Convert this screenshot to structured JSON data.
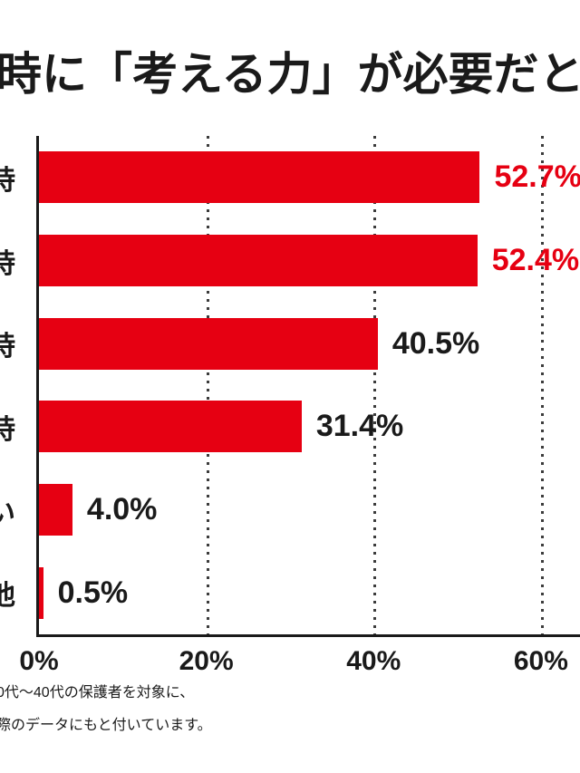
{
  "title": "時に「考える力」が必要だと",
  "chart_data": {
    "type": "bar",
    "orientation": "horizontal",
    "title": "時に「考える力」が必要だと",
    "categories": [
      "時",
      "時",
      "時",
      "時",
      "い",
      "他"
    ],
    "values": [
      52.7,
      52.4,
      40.5,
      31.4,
      4.0,
      0.5
    ],
    "value_labels": [
      "52.7%",
      "52.4%",
      "40.5%",
      "31.4%",
      "4.0%",
      "0.5%"
    ],
    "value_label_colors": [
      "#e60012",
      "#e60012",
      "#1a1a1a",
      "#1a1a1a",
      "#1a1a1a",
      "#1a1a1a"
    ],
    "bar_color": "#e60012",
    "xlabel": "",
    "ylabel": "",
    "xlim": [
      0,
      65
    ],
    "x_ticks": [
      "0%",
      "20%",
      "40%",
      "60%"
    ],
    "x_tick_values": [
      0,
      20,
      40,
      60
    ],
    "grid": "dotted-vertical",
    "legend": "none"
  },
  "footnotes": [
    "0代～40代の保護者を対象に、",
    "際のデータにもと付いています。"
  ]
}
